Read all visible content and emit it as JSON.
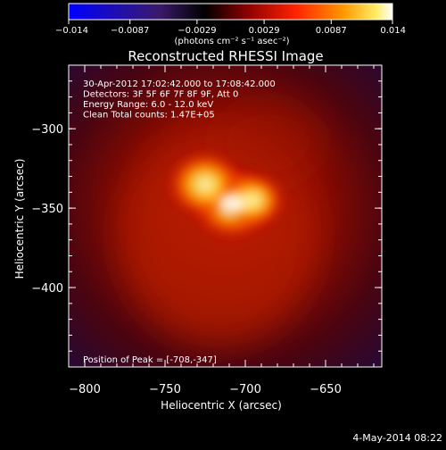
{
  "chart_data": {
    "type": "heatmap",
    "title": "Reconstructed RHESSI Image",
    "xlabel": "Heliocentric X (arcsec)",
    "ylabel": "Heliocentric Y (arcsec)",
    "xlim": [
      -810,
      -615
    ],
    "ylim": [
      -450,
      -260
    ],
    "xticks": [
      -800,
      -750,
      -700,
      -650
    ],
    "xtick_labels": [
      "−800",
      "−750",
      "−700",
      "−650"
    ],
    "yticks": [
      -300,
      -350,
      -400
    ],
    "ytick_labels": [
      "−300",
      "−350",
      "−400"
    ],
    "colorbar": {
      "range": [
        -0.014,
        0.014
      ],
      "ticks": [
        -0.014,
        -0.0087,
        -0.0029,
        0.0029,
        0.0087,
        0.014
      ],
      "tick_labels": [
        "−0.014",
        "−0.0087",
        "−0.0029",
        "0.0029",
        "0.0087",
        "0.014"
      ],
      "unit_label": "(photons cm⁻² s⁻¹ asec⁻²)",
      "colors": [
        "#0000ff",
        "#4b0082",
        "#000000",
        "#cc0000",
        "#ff6600",
        "#ffcc00",
        "#ffffff"
      ]
    },
    "annotations": [
      "30-Apr-2012 17:02:42.000 to 17:08:42.000",
      "Detectors: 3F 5F 6F 7F 8F 9F, Att 0",
      "Energy Range: 6.0 - 12.0 keV",
      "Clean    Total counts: 1.47E+05"
    ],
    "peak_label": "Position of Peak = [-708,-347]",
    "peak": [
      -708,
      -347
    ],
    "sources": [
      {
        "x": -708,
        "y": -347,
        "intensity": 0.014
      },
      {
        "x": -725,
        "y": -335,
        "intensity": 0.012
      },
      {
        "x": -695,
        "y": -345,
        "intensity": 0.008
      }
    ]
  },
  "footer": {
    "date": "4-May-2014 08:22"
  }
}
